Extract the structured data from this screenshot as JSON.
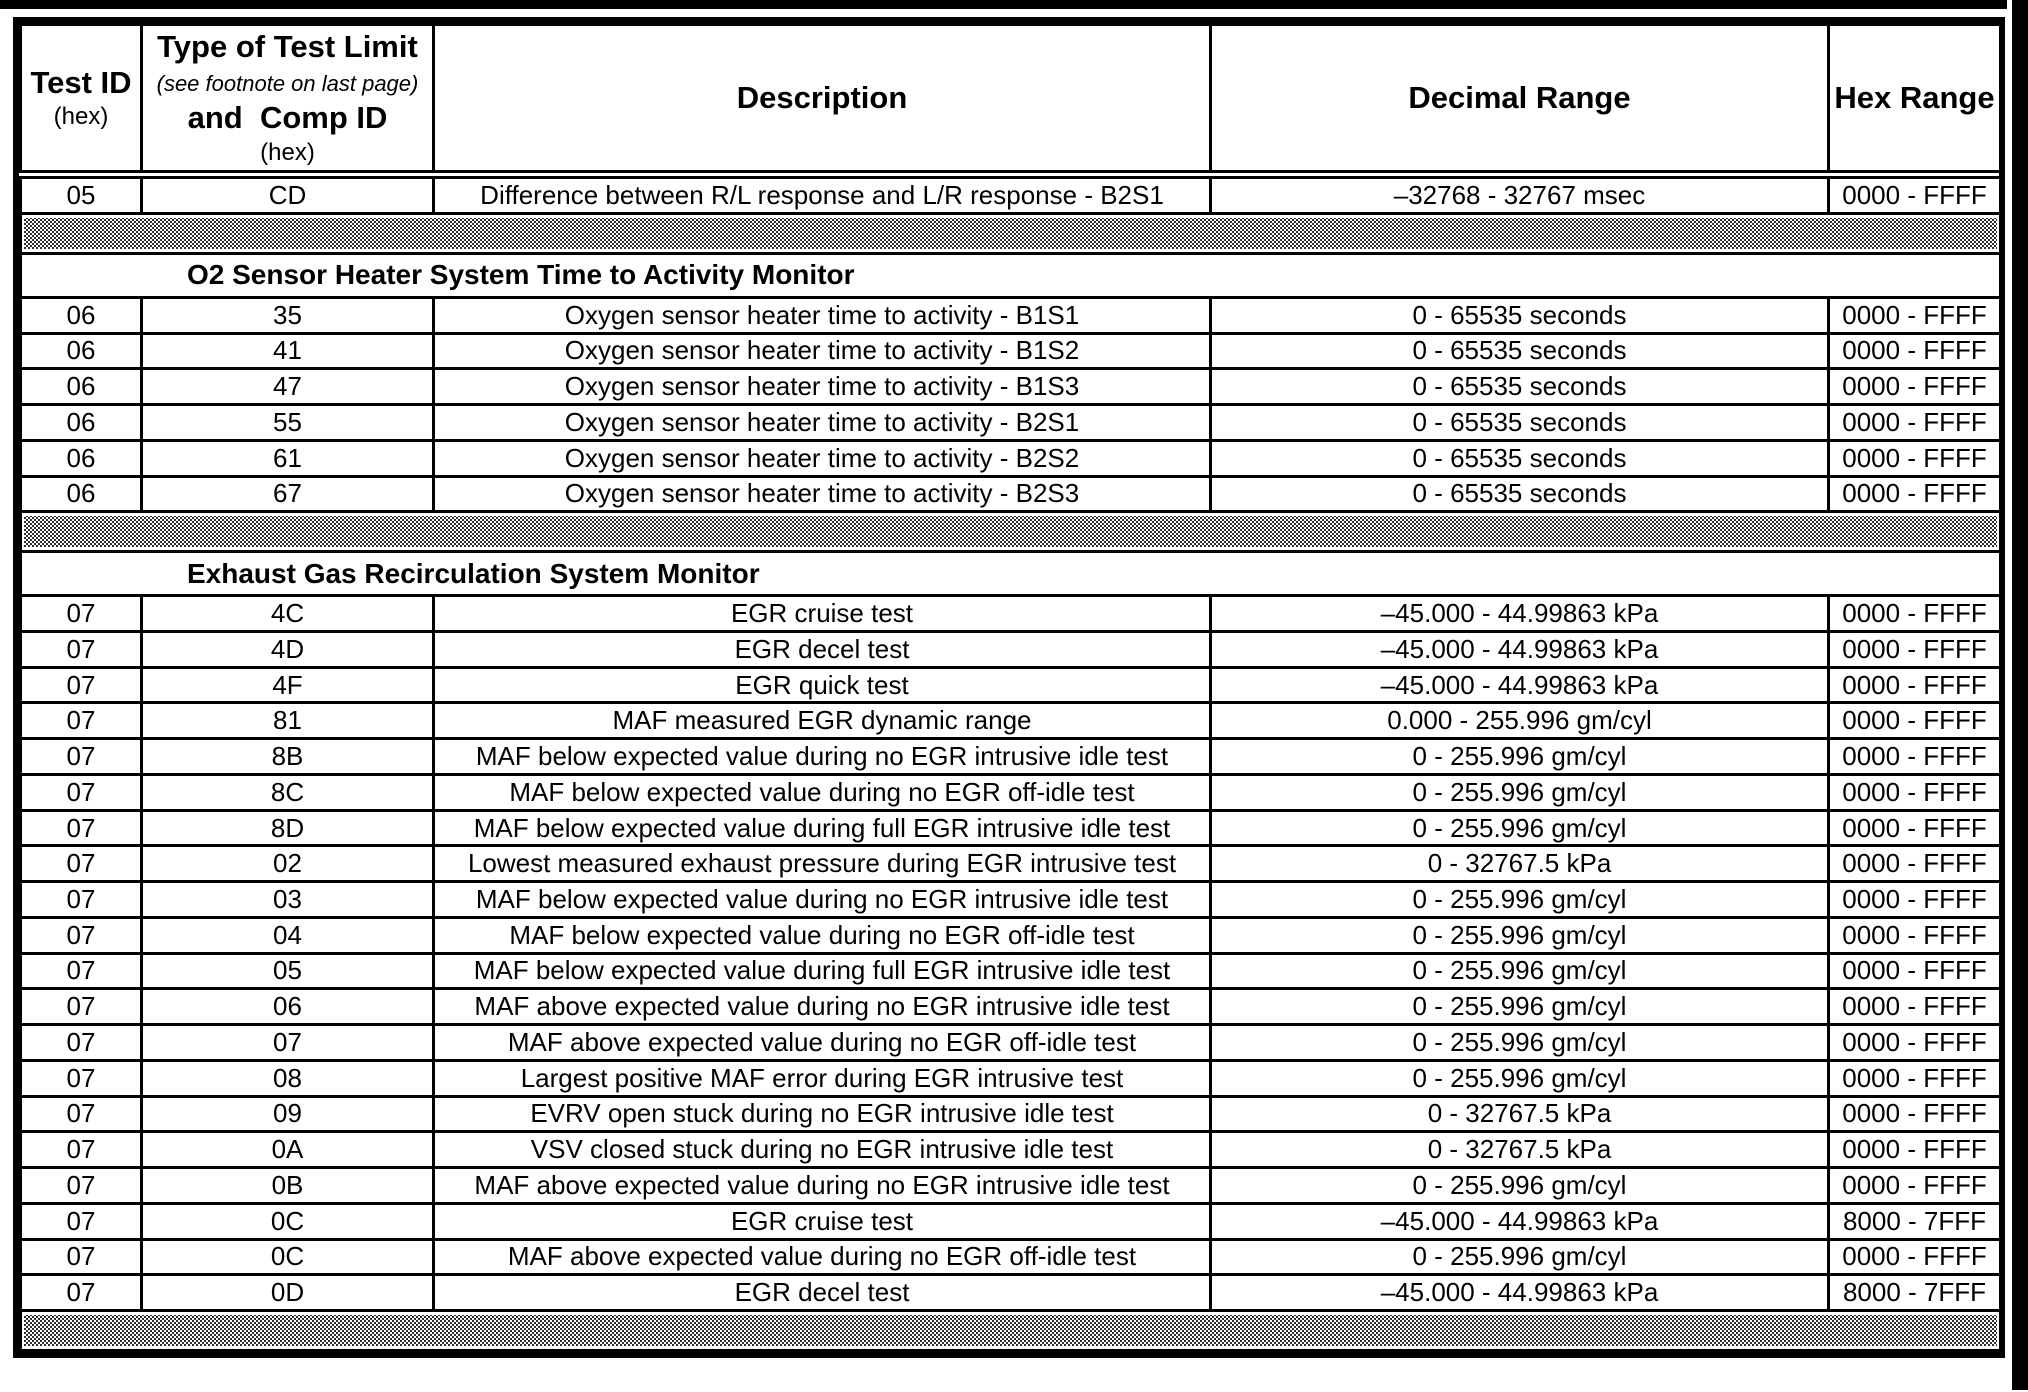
{
  "colors": {
    "ink": "#000000",
    "paper": "#ffffff",
    "separator_tone": "#2e2e2e"
  },
  "table": {
    "header": {
      "test_id": {
        "title": "Test ID",
        "sub": "(hex)"
      },
      "type": {
        "title": "Type of Test Limit",
        "note": "(see footnote on last page)",
        "title2": "and  Comp ID",
        "sub": "(hex)"
      },
      "description": "Description",
      "decimal_range": "Decimal Range",
      "hex_range": "Hex Range"
    },
    "rows": [
      {
        "type": "data",
        "test_id": "05",
        "comp_id": "CD",
        "description": "Difference between R/L response and L/R response - B2S1",
        "decimal": "–32768 - 32767 msec",
        "hex": "0000 - FFFF"
      },
      {
        "type": "separator"
      },
      {
        "type": "section",
        "label": "O2 Sensor Heater System Time to Activity Monitor"
      },
      {
        "type": "data",
        "test_id": "06",
        "comp_id": "35",
        "description": "Oxygen sensor heater time to activity - B1S1",
        "decimal": "0 - 65535 seconds",
        "hex": "0000 - FFFF"
      },
      {
        "type": "data",
        "test_id": "06",
        "comp_id": "41",
        "description": "Oxygen sensor heater time to activity - B1S2",
        "decimal": "0 - 65535 seconds",
        "hex": "0000 - FFFF"
      },
      {
        "type": "data",
        "test_id": "06",
        "comp_id": "47",
        "description": "Oxygen sensor heater time to activity - B1S3",
        "decimal": "0 - 65535 seconds",
        "hex": "0000 - FFFF"
      },
      {
        "type": "data",
        "test_id": "06",
        "comp_id": "55",
        "description": "Oxygen sensor heater time to activity - B2S1",
        "decimal": "0 - 65535 seconds",
        "hex": "0000 - FFFF"
      },
      {
        "type": "data",
        "test_id": "06",
        "comp_id": "61",
        "description": "Oxygen sensor heater time to activity - B2S2",
        "decimal": "0 - 65535 seconds",
        "hex": "0000 - FFFF"
      },
      {
        "type": "data",
        "test_id": "06",
        "comp_id": "67",
        "description": "Oxygen sensor heater time to activity - B2S3",
        "decimal": "0 - 65535 seconds",
        "hex": "0000 - FFFF"
      },
      {
        "type": "separator"
      },
      {
        "type": "section",
        "label": "Exhaust Gas Recirculation System Monitor"
      },
      {
        "type": "data",
        "test_id": "07",
        "comp_id": "4C",
        "description": "EGR cruise test",
        "decimal": "–45.000 - 44.99863 kPa",
        "hex": "0000 - FFFF"
      },
      {
        "type": "data",
        "test_id": "07",
        "comp_id": "4D",
        "description": "EGR decel test",
        "decimal": "–45.000 - 44.99863 kPa",
        "hex": "0000 - FFFF"
      },
      {
        "type": "data",
        "test_id": "07",
        "comp_id": "4F",
        "description": "EGR quick test",
        "decimal": "–45.000 - 44.99863 kPa",
        "hex": "0000 - FFFF"
      },
      {
        "type": "data",
        "test_id": "07",
        "comp_id": "81",
        "description": "MAF measured EGR dynamic range",
        "decimal": "0.000 - 255.996 gm/cyl",
        "hex": "0000 - FFFF"
      },
      {
        "type": "data",
        "test_id": "07",
        "comp_id": "8B",
        "description": "MAF below expected value during no EGR intrusive idle test",
        "decimal": "0 - 255.996 gm/cyl",
        "hex": "0000 - FFFF"
      },
      {
        "type": "data",
        "test_id": "07",
        "comp_id": "8C",
        "description": "MAF below expected value during no EGR off-idle test",
        "decimal": "0 - 255.996 gm/cyl",
        "hex": "0000 - FFFF"
      },
      {
        "type": "data",
        "test_id": "07",
        "comp_id": "8D",
        "description": "MAF below expected value during full EGR intrusive idle test",
        "decimal": "0 - 255.996 gm/cyl",
        "hex": "0000 - FFFF"
      },
      {
        "type": "data",
        "test_id": "07",
        "comp_id": "02",
        "description": "Lowest measured exhaust pressure during EGR intrusive test",
        "decimal": "0 - 32767.5 kPa",
        "hex": "0000 - FFFF"
      },
      {
        "type": "data",
        "test_id": "07",
        "comp_id": "03",
        "description": "MAF below expected value during no EGR intrusive idle test",
        "decimal": "0 - 255.996 gm/cyl",
        "hex": "0000 - FFFF"
      },
      {
        "type": "data",
        "test_id": "07",
        "comp_id": "04",
        "description": "MAF below expected value during no EGR off-idle test",
        "decimal": "0 - 255.996 gm/cyl",
        "hex": "0000 - FFFF"
      },
      {
        "type": "data",
        "test_id": "07",
        "comp_id": "05",
        "description": "MAF below expected value during full EGR intrusive idle test",
        "decimal": "0 - 255.996 gm/cyl",
        "hex": "0000 - FFFF"
      },
      {
        "type": "data",
        "test_id": "07",
        "comp_id": "06",
        "description": "MAF above expected value during no EGR intrusive idle test",
        "decimal": "0 - 255.996 gm/cyl",
        "hex": "0000 - FFFF"
      },
      {
        "type": "data",
        "test_id": "07",
        "comp_id": "07",
        "description": "MAF above expected value during no EGR off-idle test",
        "decimal": "0 - 255.996 gm/cyl",
        "hex": "0000 - FFFF"
      },
      {
        "type": "data",
        "test_id": "07",
        "comp_id": "08",
        "description": "Largest positive MAF error during EGR intrusive test",
        "decimal": "0 - 255.996 gm/cyl",
        "hex": "0000 - FFFF"
      },
      {
        "type": "data",
        "test_id": "07",
        "comp_id": "09",
        "description": "EVRV open stuck during no EGR intrusive idle test",
        "decimal": "0 - 32767.5 kPa",
        "hex": "0000 - FFFF"
      },
      {
        "type": "data",
        "test_id": "07",
        "comp_id": "0A",
        "description": "VSV closed stuck during no EGR intrusive idle test",
        "decimal": "0 - 32767.5 kPa",
        "hex": "0000 - FFFF"
      },
      {
        "type": "data",
        "test_id": "07",
        "comp_id": "0B",
        "description": "MAF above expected value during no EGR intrusive idle test",
        "decimal": "0 - 255.996 gm/cyl",
        "hex": "0000 - FFFF"
      },
      {
        "type": "data",
        "test_id": "07",
        "comp_id": "0C",
        "description": "EGR cruise test",
        "decimal": "–45.000 - 44.99863 kPa",
        "hex": "8000 - 7FFF"
      },
      {
        "type": "data",
        "test_id": "07",
        "comp_id": "0C",
        "description": "MAF above expected value during no EGR off-idle test",
        "decimal": "0 - 255.996 gm/cyl",
        "hex": "0000 - FFFF"
      },
      {
        "type": "data",
        "test_id": "07",
        "comp_id": "0D",
        "description": "EGR decel test",
        "decimal": "–45.000 - 44.99863 kPa",
        "hex": "8000 - 7FFF"
      },
      {
        "type": "separator"
      }
    ]
  }
}
